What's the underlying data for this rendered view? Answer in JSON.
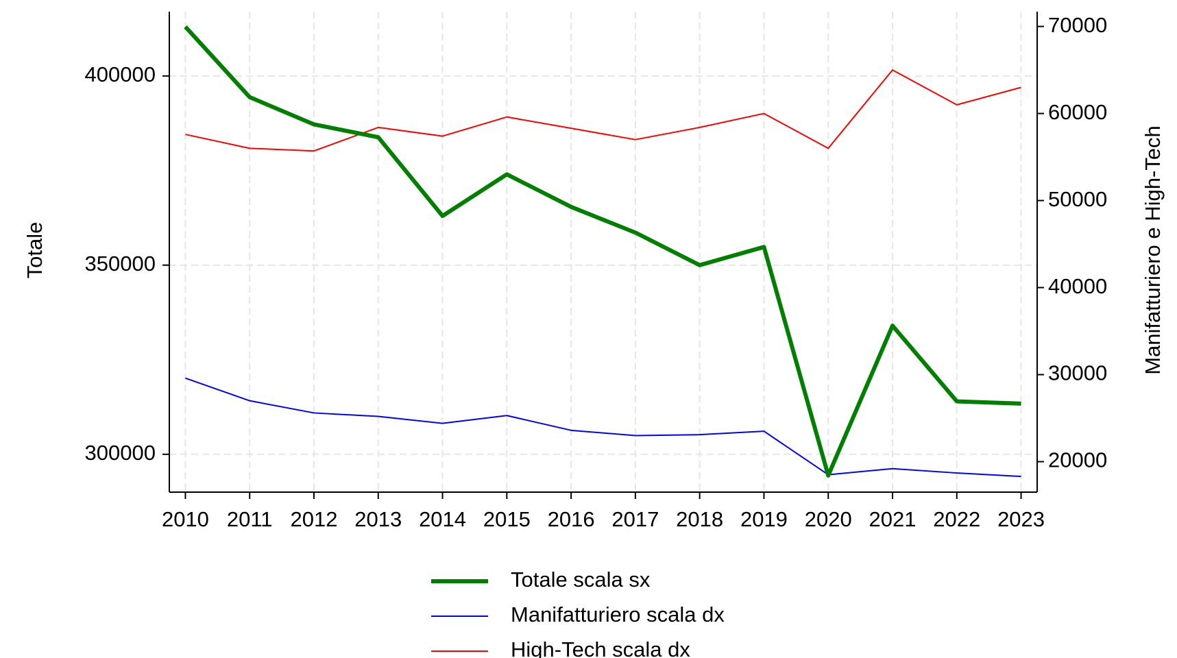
{
  "chart_data": {
    "type": "line",
    "x": [
      2010,
      2011,
      2012,
      2013,
      2014,
      2015,
      2016,
      2017,
      2018,
      2019,
      2020,
      2021,
      2022,
      2023
    ],
    "xlim": [
      2009.75,
      2023.25
    ],
    "xticks": [
      2010,
      2011,
      2012,
      2013,
      2014,
      2015,
      2016,
      2017,
      2018,
      2019,
      2020,
      2021,
      2022,
      2023
    ],
    "ylabel": "Totale",
    "ylim": [
      290000,
      417000
    ],
    "yticks": [
      300000,
      350000,
      400000
    ],
    "y2label": "Manifatturiero e High-Tech",
    "y2lim": [
      16500,
      71700
    ],
    "y2ticks": [
      20000,
      30000,
      40000,
      50000,
      60000,
      70000
    ],
    "grid": true,
    "legend": "bottom",
    "series": [
      {
        "name": "Totale scala sx",
        "color": "#007f00",
        "width": 6,
        "values": [
          413000,
          394400,
          387200,
          383800,
          363000,
          374000,
          365400,
          358600,
          350000,
          354800,
          294400,
          334000,
          314000,
          313400
        ]
      },
      {
        "name": "Manifatturiero scala dx",
        "color": "#0000ff",
        "width": 2,
        "axis": "y2",
        "values": [
          29600,
          27000,
          25600,
          25200,
          24400,
          25300,
          23600,
          23000,
          23100,
          23500,
          18500,
          19200,
          18700,
          18300
        ]
      },
      {
        "name": "High-Tech scala dx",
        "color": "#ff0000",
        "width": 2,
        "axis": "y2",
        "values": [
          57600,
          56000,
          55700,
          58400,
          57400,
          59600,
          58300,
          57000,
          58400,
          60000,
          56000,
          65000,
          61000,
          63000
        ]
      }
    ]
  }
}
